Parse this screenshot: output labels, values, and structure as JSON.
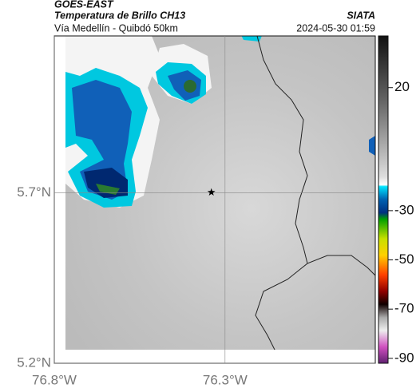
{
  "header": {
    "title": "GOES-EAST",
    "subtitle": "Temperatura de Brillo CH13",
    "route": "Vía Medellín - Quibdó 50km",
    "source": "SIATA",
    "timestamp": "2024-05-30 01:59"
  },
  "map": {
    "xlim": [
      -76.8,
      -75.86
    ],
    "ylim": [
      5.2,
      6.16
    ],
    "xticks": [
      {
        "value": -76.8,
        "label": "76.8°W"
      },
      {
        "value": -76.3,
        "label": "76.3°W"
      }
    ],
    "yticks": [
      {
        "value": 5.2,
        "label": "5.2°N"
      },
      {
        "value": 5.7,
        "label": "5.7°N"
      }
    ],
    "marker": {
      "lon": -76.34,
      "lat": 5.7
    }
  },
  "colorbar": {
    "lim": [
      -92,
      41
    ],
    "ticks": [
      20,
      -30,
      -50,
      -70,
      -90
    ]
  }
}
